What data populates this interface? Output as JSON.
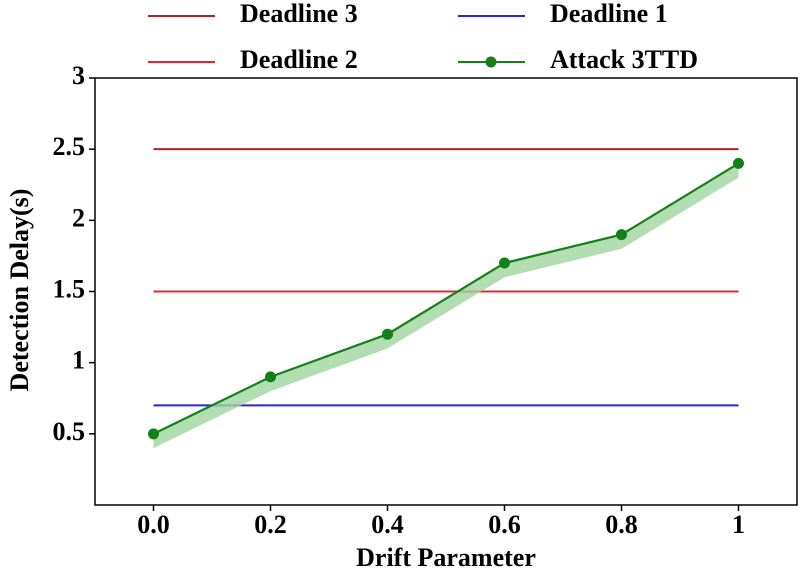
{
  "chart_data": {
    "type": "line",
    "xlabel": "Drift Parameter",
    "ylabel": "Detection Delay(s)",
    "x": [
      0,
      0.2,
      0.4,
      0.6,
      0.8,
      1
    ],
    "xlim": [
      -0.1,
      1.1
    ],
    "xticks": [
      {
        "value": 0,
        "label": "0.0"
      },
      0.2,
      0.4,
      0.6,
      0.8,
      1
    ],
    "ylim": [
      0,
      3
    ],
    "yticks": [
      0.5,
      1,
      1.5,
      2,
      2.5,
      3
    ],
    "legend": "top",
    "series": [
      {
        "name": "Deadline 3",
        "color": "#b22222",
        "value": 2.5
      },
      {
        "name": "Deadline 2",
        "color": "#e8262a",
        "value": 1.5
      },
      {
        "name": "Deadline 1",
        "color": "#2626e0",
        "value": 0.7
      },
      {
        "name": "Attack 3TTD",
        "color": "#15801a",
        "band_color": "#9fd69f",
        "values": [
          0.5,
          0.9,
          1.2,
          1.7,
          1.9,
          2.4
        ],
        "band_lower": [
          0.4,
          0.8,
          1.1,
          1.6,
          1.8,
          2.3
        ]
      }
    ]
  }
}
